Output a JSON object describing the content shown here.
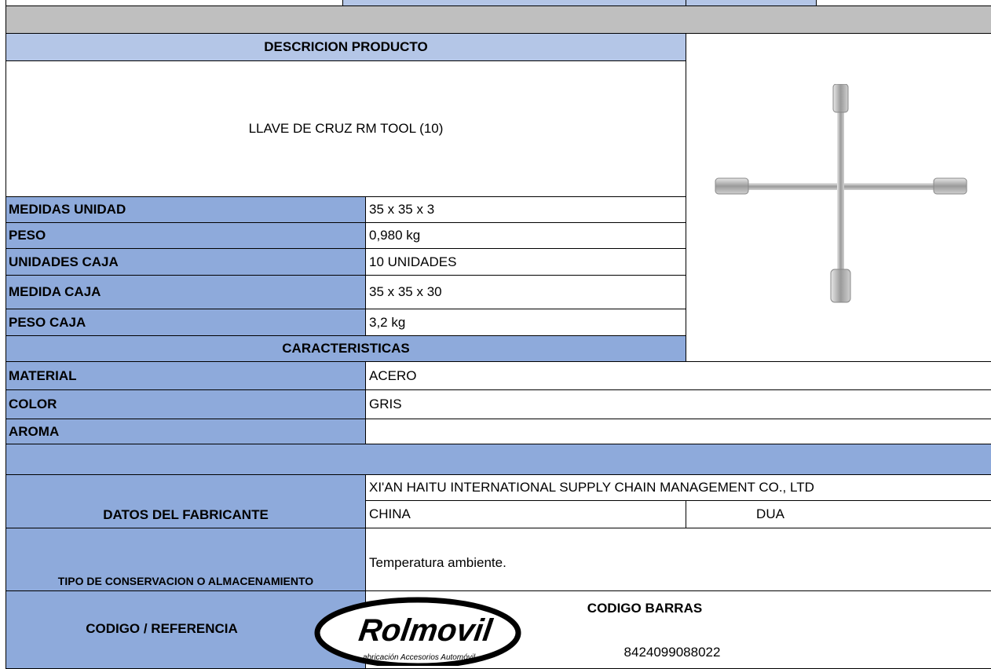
{
  "header": {
    "section_title": "DESCRICION PRODUCTO",
    "product_name": "LLAVE DE CRUZ RM TOOL (10)"
  },
  "specs": [
    {
      "label": "MEDIDAS UNIDAD",
      "value": "35  x 35 x 3"
    },
    {
      "label": "PESO",
      "value": "0,980 kg"
    },
    {
      "label": "UNIDADES CAJA",
      "value": "10 UNIDADES"
    },
    {
      "label": "MEDIDA CAJA",
      "value": "35 x 35 x 30"
    },
    {
      "label": "PESO CAJA",
      "value": "3,2 kg"
    }
  ],
  "characteristics": {
    "title": "CARACTERISTICAS",
    "rows": [
      {
        "label": "MATERIAL",
        "value": "ACERO"
      },
      {
        "label": "COLOR",
        "value": "GRIS"
      },
      {
        "label": "AROMA"
      }
    ]
  },
  "manufacturer": {
    "label": "DATOS DEL FABRICANTE",
    "name": "XI'AN HAITU INTERNATIONAL SUPPLY CHAIN MANAGEMENT CO., LTD",
    "country": "CHINA",
    "dua": "DUA"
  },
  "storage": {
    "label": "TIPO DE CONSERVACION O ALMACENAMIENTO",
    "value": "Temperatura ambiente."
  },
  "codes": {
    "label": "CODIGO / REFERENCIA",
    "barcode_title": "CODIGO BARRAS",
    "barcode": "8424099088022"
  },
  "logo": {
    "brand": "Rolmovil",
    "tagline": "abricación Accesorios Automóvil"
  }
}
